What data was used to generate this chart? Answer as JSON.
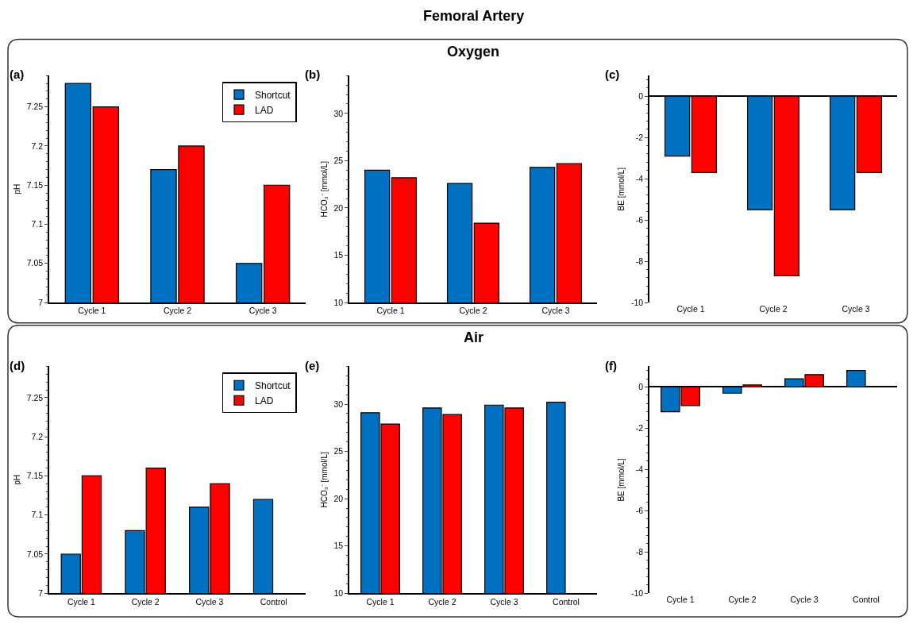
{
  "chart_data": [
    {
      "type": "bar",
      "annotations": [
        "(a)"
      ],
      "ylabel": "pH",
      "categories": [
        "Cycle 1",
        "Cycle 2",
        "Cycle 3"
      ],
      "ylim": [
        7,
        7.29
      ],
      "yticks": [
        7,
        7.05,
        7.1,
        7.15,
        7.2,
        7.25
      ],
      "legend": "top right",
      "series": [
        {
          "name": "Shortcut",
          "color": "#0070c0",
          "values": [
            7.28,
            7.17,
            7.05
          ]
        },
        {
          "name": "LAD",
          "color": "#ff0000",
          "values": [
            7.25,
            7.2,
            7.15
          ]
        }
      ]
    },
    {
      "type": "bar",
      "title": "Femoral Artery",
      "subtitle": "Oxygen",
      "annotations": [
        "(b)"
      ],
      "ylabel": "HCO₃⁻ [mmol/L]",
      "categories": [
        "Cycle 1",
        "Cycle 2",
        "Cycle 3"
      ],
      "ylim": [
        10,
        34
      ],
      "yticks": [
        10,
        15,
        20,
        25,
        30
      ],
      "series": [
        {
          "color": "#0070c0",
          "values": [
            24,
            22.6,
            24.3
          ]
        },
        {
          "color": "#ff0000",
          "values": [
            23.2,
            18.4,
            24.7
          ]
        }
      ]
    },
    {
      "type": "bar",
      "annotations": [
        "(c)"
      ],
      "ylabel": "BE [mmol/L]",
      "categories": [
        "Cycle 1",
        "Cycle 2",
        "Cycle 3"
      ],
      "ylim": [
        -10,
        1
      ],
      "yticks": [
        -10,
        -8,
        -6,
        -4,
        -2,
        0
      ],
      "series": [
        {
          "color": "#0070c0",
          "values": [
            -2.9,
            -5.5,
            -5.5
          ]
        },
        {
          "color": "#ff0000",
          "values": [
            -3.7,
            -8.7,
            -3.7
          ]
        }
      ]
    },
    {
      "type": "bar",
      "annotations": [
        "(d)"
      ],
      "ylabel": "pH",
      "categories": [
        "Cycle 1",
        "Cycle 2",
        "Cycle 3",
        "Control"
      ],
      "ylim": [
        7,
        7.29
      ],
      "yticks": [
        7,
        7.05,
        7.1,
        7.15,
        7.2,
        7.25
      ],
      "legend": "top right",
      "series": [
        {
          "name": "Shortcut",
          "color": "#0070c0",
          "values": [
            7.05,
            7.08,
            7.11,
            7.12
          ]
        },
        {
          "name": "LAD",
          "color": "#ff0000",
          "values": [
            7.15,
            7.16,
            7.14,
            null
          ]
        }
      ]
    },
    {
      "type": "bar",
      "subtitle": "Air",
      "annotations": [
        "(e)"
      ],
      "ylabel": "HCO₃⁻ [mmol/L]",
      "categories": [
        "Cycle 1",
        "Cycle 2",
        "Cycle 3",
        "Control"
      ],
      "ylim": [
        10,
        34
      ],
      "yticks": [
        10,
        15,
        20,
        25,
        30
      ],
      "series": [
        {
          "color": "#0070c0",
          "values": [
            29.1,
            29.6,
            29.9,
            30.2
          ]
        },
        {
          "color": "#ff0000",
          "values": [
            27.9,
            28.9,
            29.6,
            null
          ]
        }
      ]
    },
    {
      "type": "bar",
      "annotations": [
        "(f)"
      ],
      "ylabel": "BE [mmol/L]",
      "categories": [
        "Cycle 1",
        "Cycle 2",
        "Cycle 3",
        "Control"
      ],
      "ylim": [
        -10,
        1
      ],
      "yticks": [
        -10,
        -8,
        -6,
        -4,
        -2,
        0
      ],
      "series": [
        {
          "color": "#0070c0",
          "values": [
            -1.2,
            -0.3,
            0.4,
            0.8
          ]
        },
        {
          "color": "#ff0000",
          "values": [
            -0.9,
            0.1,
            0.6,
            null
          ]
        }
      ]
    }
  ]
}
